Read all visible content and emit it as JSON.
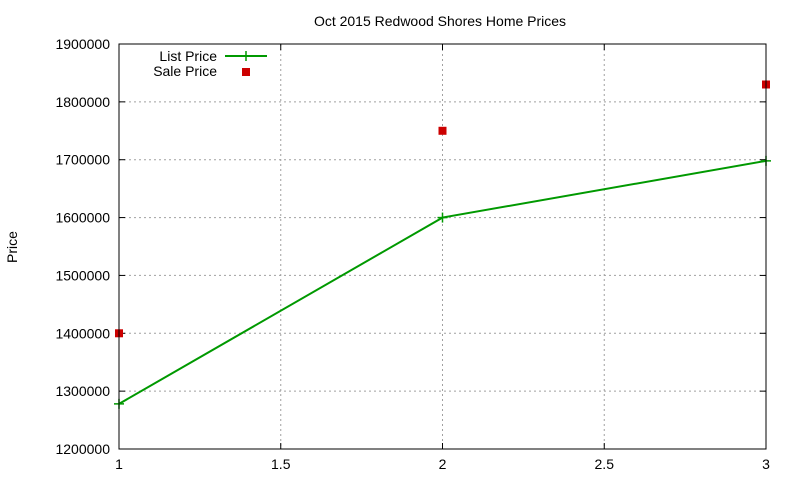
{
  "chart_data": {
    "type": "line",
    "title": "Oct 2015 Redwood Shores Home Prices",
    "xlabel": "",
    "ylabel": "Price",
    "xlim": [
      1,
      3
    ],
    "ylim": [
      1200000,
      1900000
    ],
    "xticks": [
      1,
      1.5,
      2,
      2.5,
      3
    ],
    "xtick_labels": [
      "1",
      "1.5",
      "2",
      "2.5",
      "3"
    ],
    "yticks": [
      1200000,
      1300000,
      1400000,
      1500000,
      1600000,
      1700000,
      1800000,
      1900000
    ],
    "ytick_labels": [
      "1200000",
      "1300000",
      "1400000",
      "1500000",
      "1600000",
      "1700000",
      "1800000",
      "1900000"
    ],
    "grid": true,
    "legend_position": "top-left",
    "series": [
      {
        "name": "List Price",
        "style": "linespoints",
        "color": "#009900",
        "x": [
          1,
          2,
          3
        ],
        "y": [
          1278000,
          1600000,
          1698000
        ]
      },
      {
        "name": "Sale Price",
        "style": "points",
        "color": "#cc0000",
        "x": [
          1,
          2,
          3
        ],
        "y": [
          1400000,
          1750000,
          1830000
        ]
      }
    ]
  }
}
